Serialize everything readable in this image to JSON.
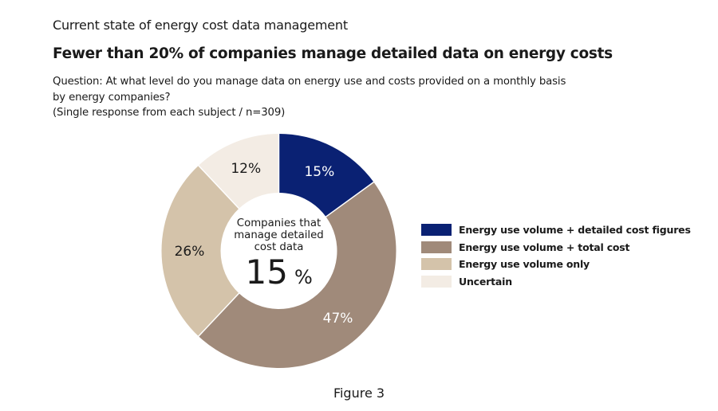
{
  "header": {
    "kicker": "Current state of energy cost data management",
    "title": "Fewer than 20% of companies manage detailed data on energy costs",
    "question_lines": [
      "Question: At what level do you manage data on energy use and costs provided on a monthly basis",
      "by energy companies?",
      "(Single response from each subject / n=309)"
    ]
  },
  "chart_data": {
    "type": "pie",
    "variant": "donut",
    "title": "Fewer than 20% of companies manage detailed data on energy costs",
    "unit": "%",
    "start_angle": "12 o'clock",
    "direction": "clockwise",
    "slices": [
      {
        "label": "Energy use volume + detailed cost figures",
        "value": 15,
        "display": "15%",
        "color": "#0a2173",
        "label_color": "#ffffff"
      },
      {
        "label": "Energy use volume + total cost",
        "value": 47,
        "display": "47%",
        "color": "#a08a7a",
        "label_color": "#ffffff"
      },
      {
        "label": "Energy use volume only",
        "value": 26,
        "display": "26%",
        "color": "#d4c3aa",
        "label_color": "#1a1a1a"
      },
      {
        "label": "Uncertain",
        "value": 12,
        "display": "12%",
        "color": "#f3ece4",
        "label_color": "#1a1a1a"
      }
    ],
    "center": {
      "lines": [
        "Companies that",
        "manage detailed",
        "cost data"
      ],
      "value": "15",
      "unit": "%"
    },
    "legend_position": "right"
  },
  "footer": {
    "caption": "Figure 3"
  }
}
